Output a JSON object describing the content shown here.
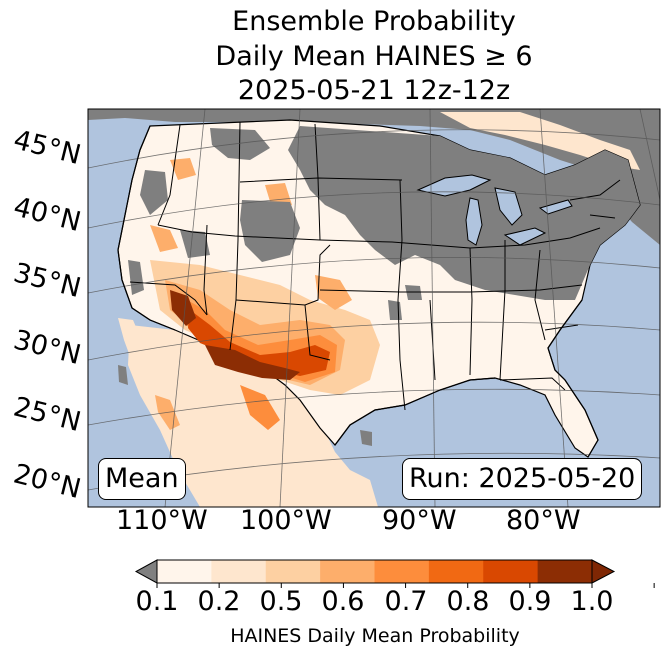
{
  "title": {
    "line1": "Ensemble Probability",
    "line2": "Daily Mean HAINES ≥ 6",
    "line3": "2025-05-21 12z-12z"
  },
  "latitude_labels": [
    "45°N",
    "40°N",
    "35°N",
    "30°N",
    "25°N",
    "20°N"
  ],
  "longitude_labels": [
    "110°W",
    "100°W",
    "90°W",
    "80°W"
  ],
  "stat_box": "Mean",
  "run_box": "Run: 2025-05-20",
  "colorbar": {
    "ticks": [
      "0.1",
      "0.2",
      "0.5",
      "0.6",
      "0.7",
      "0.8",
      "0.9",
      "1.0"
    ],
    "label": "HAINES Daily Mean Probability",
    "colors": [
      "#fff5eb",
      "#fee6ce",
      "#fdd0a2",
      "#fdae6b",
      "#fd8d3c",
      "#f16913",
      "#d94801",
      "#8c2d04"
    ],
    "under_color": "#808080",
    "over_color": "#7f2704"
  },
  "map_colors": {
    "ocean": "#b0c4de",
    "no_signal": "#7f7f7f",
    "land_low": "#fff5eb"
  }
}
